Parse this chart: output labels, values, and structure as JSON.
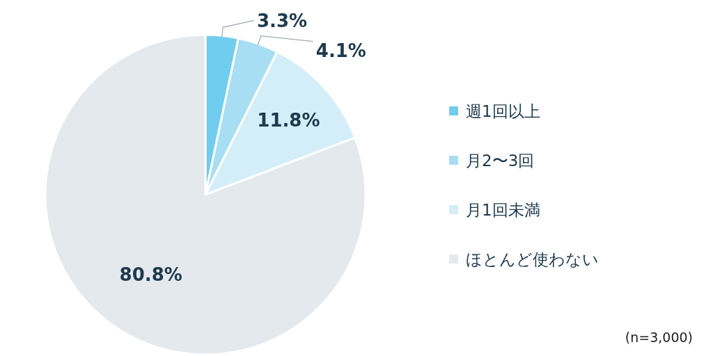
{
  "chart_data": {
    "type": "pie",
    "categories": [
      "週1回以上",
      "月2〜3回",
      "月1回未満",
      "ほとんど使わない"
    ],
    "values": [
      3.3,
      4.1,
      11.8,
      80.8
    ],
    "colors": [
      "#70cdef",
      "#a8def4",
      "#d4eef9",
      "#e4e9ee"
    ],
    "value_labels": [
      "3.3%",
      "4.1%",
      "11.8%",
      "80.8%"
    ],
    "legend": "right",
    "annotations": [
      "(n=3,000)"
    ]
  }
}
